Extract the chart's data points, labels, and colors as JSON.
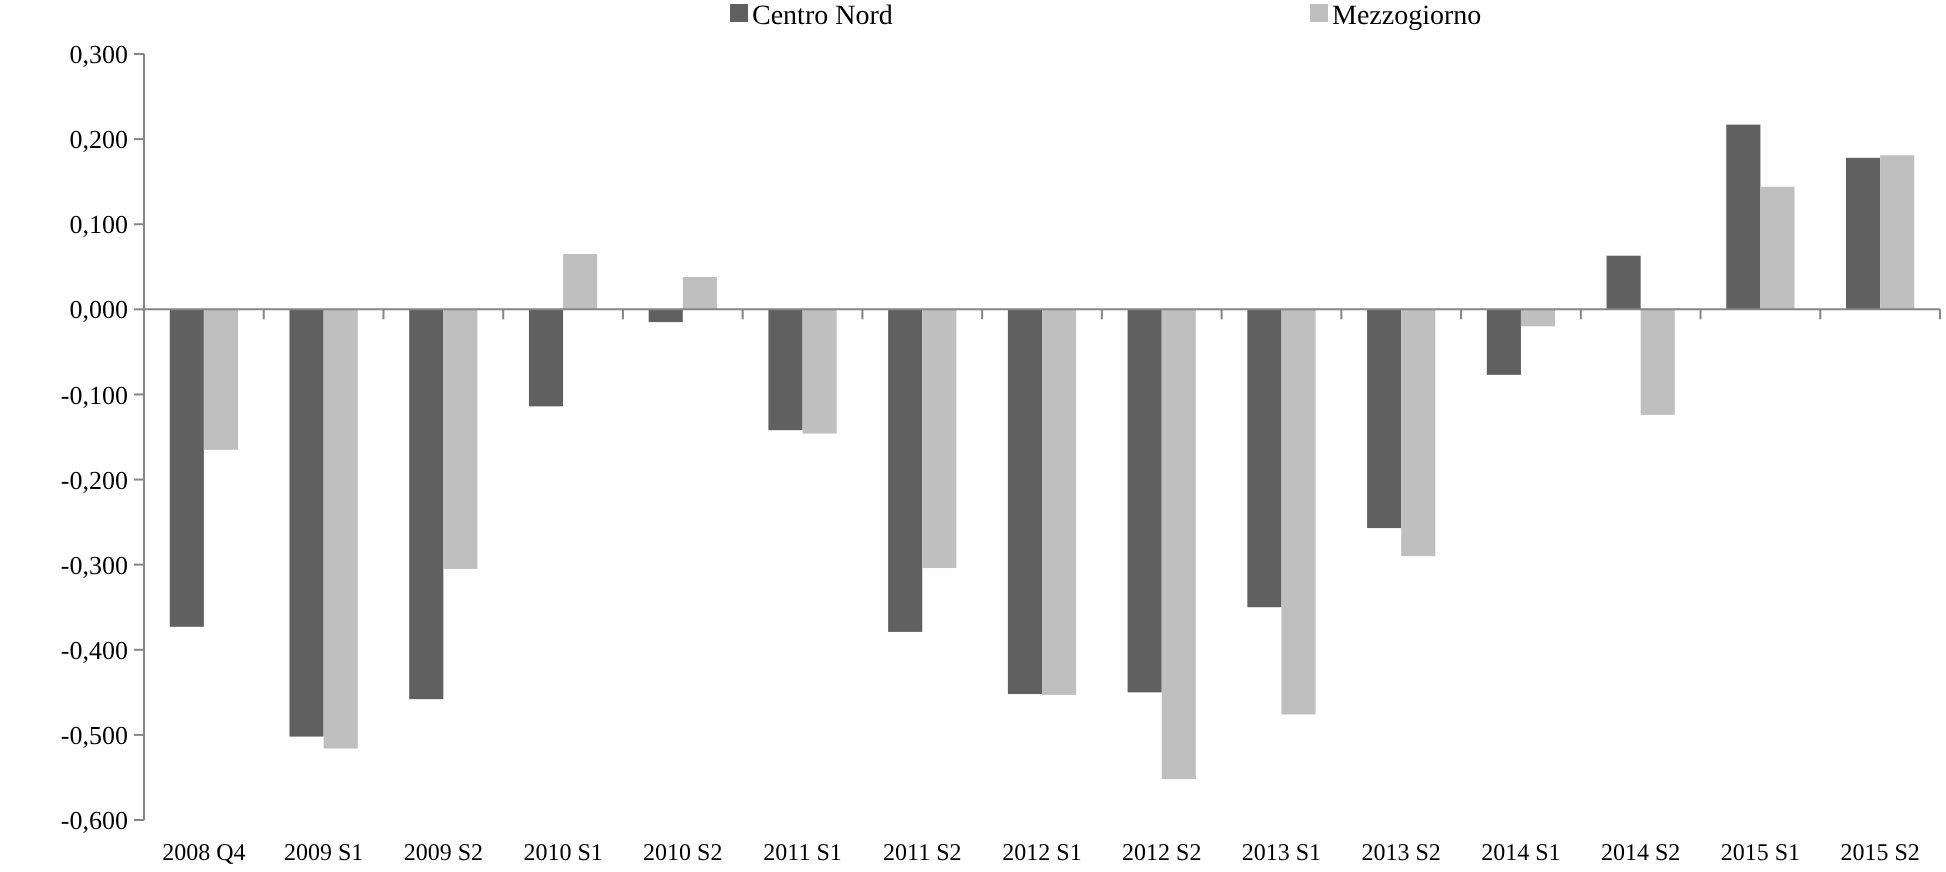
{
  "chart_data": {
    "type": "bar",
    "categories": [
      "2008 Q4",
      "2009 S1",
      "2009 S2",
      "2010 S1",
      "2010 S2",
      "2011 S1",
      "2011 S2",
      "2012 S1",
      "2012 S2",
      "2013 S1",
      "2013 S2",
      "2014 S1",
      "2014 S2",
      "2015 S1",
      "2015 S2"
    ],
    "series": [
      {
        "name": "Centro Nord",
        "color": "#606060",
        "values": [
          -0.373,
          -0.502,
          -0.458,
          -0.114,
          -0.015,
          -0.142,
          -0.379,
          -0.452,
          -0.45,
          -0.35,
          -0.257,
          -0.077,
          0.063,
          0.217,
          0.178
        ]
      },
      {
        "name": "Mezzogiorno",
        "color": "#bfbfbf",
        "values": [
          -0.165,
          -0.516,
          -0.305,
          0.065,
          0.038,
          -0.146,
          -0.304,
          -0.453,
          -0.552,
          -0.476,
          -0.29,
          -0.02,
          -0.124,
          0.144,
          0.181
        ]
      }
    ],
    "ylim": [
      -0.6,
      0.3
    ],
    "yticks": [
      {
        "value": -0.6,
        "label": "-0,600"
      },
      {
        "value": -0.5,
        "label": "-0,500"
      },
      {
        "value": -0.4,
        "label": "-0,400"
      },
      {
        "value": -0.3,
        "label": "-0,300"
      },
      {
        "value": -0.2,
        "label": "-0,200"
      },
      {
        "value": -0.1,
        "label": "-0,100"
      },
      {
        "value": 0,
        "label": "0,000"
      },
      {
        "value": 0.1,
        "label": "0,100"
      },
      {
        "value": 0.2,
        "label": "0,200"
      },
      {
        "value": 0.3,
        "label": "0,300"
      }
    ],
    "legend": "top"
  }
}
